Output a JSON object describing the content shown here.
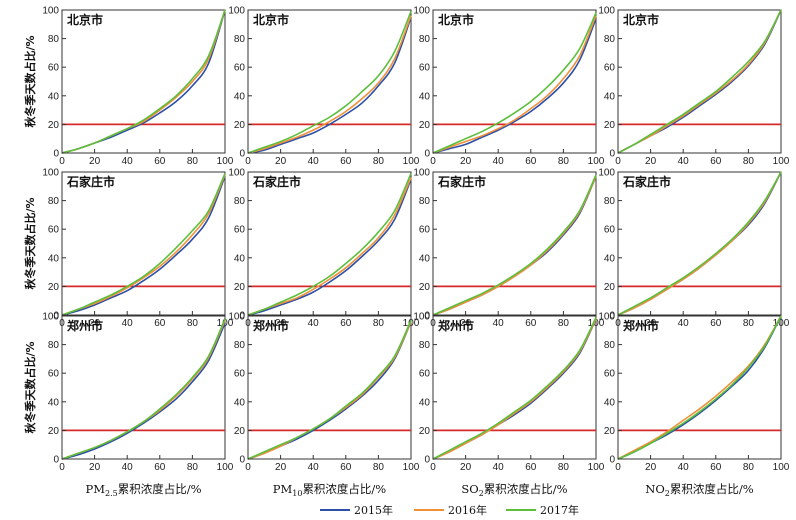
{
  "colors": {
    "2015": "#2c4fa8",
    "2016": "#f0903a",
    "2017": "#5cbf3c",
    "threshold": "#d62a2a",
    "axis": "#333333"
  },
  "legend": [
    {
      "name": "2015年",
      "color": "#2c4fa8"
    },
    {
      "name": "2016年",
      "color": "#f0903a"
    },
    {
      "name": "2017年",
      "color": "#5cbf3c"
    }
  ],
  "ylabel": "秋冬季天数占比/%",
  "columns": [
    {
      "pollutant": "PM2.5",
      "xlabel_pre": "PM",
      "xlabel_sub": "2.5",
      "xlabel_post": "累积浓度占比/%"
    },
    {
      "pollutant": "PM10",
      "xlabel_pre": "PM",
      "xlabel_sub": "10",
      "xlabel_post": "累积浓度占比/%"
    },
    {
      "pollutant": "SO2",
      "xlabel_pre": "SO",
      "xlabel_sub": "2",
      "xlabel_post": "累积浓度占比/%"
    },
    {
      "pollutant": "NO2",
      "xlabel_pre": "NO",
      "xlabel_sub": "2",
      "xlabel_post": "累积浓度占比/%"
    }
  ],
  "rows": [
    {
      "city": "北京市"
    },
    {
      "city": "石家庄市"
    },
    {
      "city": "郑州市"
    }
  ],
  "chart_data": {
    "type": "line",
    "threshold_y": 20,
    "xlim": [
      0,
      100
    ],
    "ylim": [
      0,
      100
    ],
    "xticks": [
      0,
      20,
      40,
      60,
      80,
      100
    ],
    "yticks": [
      0,
      20,
      40,
      60,
      80,
      100
    ],
    "x": [
      0,
      10,
      20,
      30,
      40,
      50,
      60,
      70,
      80,
      90,
      100
    ],
    "panels": [
      {
        "city": "北京市",
        "pollutant": "PM2.5",
        "series": [
          {
            "name": "2015年",
            "values": [
              0,
              3,
              7,
              11,
              16,
              21,
              28,
              36,
              47,
              63,
              100
            ]
          },
          {
            "name": "2016年",
            "values": [
              0,
              3,
              7,
              12,
              17,
              22,
              30,
              39,
              50,
              66,
              100
            ]
          },
          {
            "name": "2017年",
            "values": [
              0,
              3,
              7,
              12,
              17,
              23,
              31,
              40,
              52,
              68,
              100
            ]
          }
        ]
      },
      {
        "city": "北京市",
        "pollutant": "PM10",
        "series": [
          {
            "name": "2015年",
            "values": [
              0,
              2,
              6,
              10,
              14,
              20,
              27,
              35,
              47,
              63,
              95
            ]
          },
          {
            "name": "2016年",
            "values": [
              0,
              3,
              7,
              11,
              16,
              22,
              29,
              38,
              49,
              66,
              96
            ]
          },
          {
            "name": "2017年",
            "values": [
              0,
              4,
              8,
              13,
              19,
              25,
              33,
              43,
              54,
              71,
              99
            ]
          }
        ]
      },
      {
        "city": "北京市",
        "pollutant": "SO2",
        "series": [
          {
            "name": "2015年",
            "values": [
              0,
              3,
              6,
              11,
              16,
              22,
              29,
              38,
              49,
              65,
              94
            ]
          },
          {
            "name": "2016年",
            "values": [
              0,
              4,
              8,
              12,
              17,
              23,
              31,
              40,
              52,
              68,
              96
            ]
          },
          {
            "name": "2017年",
            "values": [
              0,
              5,
              10,
              15,
              21,
              28,
              36,
              46,
              58,
              73,
              98
            ]
          }
        ]
      },
      {
        "city": "北京市",
        "pollutant": "NO2",
        "series": [
          {
            "name": "2015年",
            "values": [
              0,
              6,
              12,
              18,
              25,
              33,
              41,
              50,
              61,
              76,
              100
            ]
          },
          {
            "name": "2016年",
            "values": [
              0,
              6,
              12,
              19,
              26,
              34,
              42,
              51,
              62,
              77,
              100
            ]
          },
          {
            "name": "2017年",
            "values": [
              0,
              6,
              13,
              20,
              27,
              35,
              43,
              53,
              64,
              78,
              100
            ]
          }
        ]
      },
      {
        "city": "石家庄市",
        "pollutant": "PM2.5",
        "series": [
          {
            "name": "2015年",
            "values": [
              0,
              3,
              7,
              12,
              17,
              24,
              32,
              42,
              53,
              68,
              97
            ]
          },
          {
            "name": "2016年",
            "values": [
              0,
              4,
              8,
              13,
              19,
              26,
              34,
              44,
              56,
              71,
              98
            ]
          },
          {
            "name": "2017年",
            "values": [
              0,
              4,
              9,
              14,
              20,
              27,
              36,
              47,
              59,
              73,
              99
            ]
          }
        ]
      },
      {
        "city": "石家庄市",
        "pollutant": "PM10",
        "series": [
          {
            "name": "2015年",
            "values": [
              0,
              3,
              7,
              11,
              16,
              23,
              31,
              41,
              52,
              67,
              95
            ]
          },
          {
            "name": "2016年",
            "values": [
              0,
              4,
              8,
              12,
              18,
              25,
              33,
              43,
              54,
              70,
              96
            ]
          },
          {
            "name": "2017年",
            "values": [
              0,
              4,
              9,
              14,
              20,
              27,
              36,
              46,
              58,
              73,
              99
            ]
          }
        ]
      },
      {
        "city": "石家庄市",
        "pollutant": "SO2",
        "series": [
          {
            "name": "2015年",
            "values": [
              0,
              4,
              9,
              14,
              20,
              27,
              35,
              44,
              56,
              71,
              97
            ]
          },
          {
            "name": "2016年",
            "values": [
              0,
              4,
              9,
              14,
              20,
              27,
              35,
              45,
              57,
              72,
              97
            ]
          },
          {
            "name": "2017年",
            "values": [
              0,
              5,
              10,
              15,
              21,
              28,
              36,
              46,
              58,
              73,
              98
            ]
          }
        ]
      },
      {
        "city": "石家庄市",
        "pollutant": "NO2",
        "series": [
          {
            "name": "2015年",
            "values": [
              0,
              5,
              11,
              18,
              25,
              33,
              42,
              52,
              63,
              78,
              100
            ]
          },
          {
            "name": "2016年",
            "values": [
              0,
              5,
              11,
              18,
              25,
              33,
              42,
              52,
              64,
              79,
              100
            ]
          },
          {
            "name": "2017年",
            "values": [
              0,
              6,
              12,
              19,
              26,
              34,
              43,
              53,
              65,
              80,
              100
            ]
          }
        ]
      },
      {
        "city": "郑州市",
        "pollutant": "PM2.5",
        "series": [
          {
            "name": "2015年",
            "values": [
              0,
              3,
              7,
              12,
              18,
              25,
              33,
              42,
              54,
              69,
              95
            ]
          },
          {
            "name": "2016年",
            "values": [
              0,
              4,
              8,
              13,
              19,
              26,
              34,
              44,
              56,
              71,
              97
            ]
          },
          {
            "name": "2017年",
            "values": [
              0,
              4,
              8,
              13,
              19,
              26,
              35,
              45,
              57,
              72,
              98
            ]
          }
        ]
      },
      {
        "city": "郑州市",
        "pollutant": "PM10",
        "series": [
          {
            "name": "2015年",
            "values": [
              0,
              4,
              9,
              14,
              20,
              27,
              35,
              44,
              55,
              70,
              96
            ]
          },
          {
            "name": "2016年",
            "values": [
              0,
              4,
              9,
              15,
              21,
              28,
              36,
              45,
              57,
              71,
              96
            ]
          },
          {
            "name": "2017年",
            "values": [
              0,
              5,
              10,
              15,
              21,
              28,
              37,
              46,
              58,
              72,
              97
            ]
          }
        ]
      },
      {
        "city": "郑州市",
        "pollutant": "SO2",
        "series": [
          {
            "name": "2015年",
            "values": [
              0,
              5,
              11,
              17,
              24,
              31,
              39,
              49,
              60,
              74,
              98
            ]
          },
          {
            "name": "2016年",
            "values": [
              0,
              5,
              11,
              17,
              24,
              32,
              40,
              50,
              61,
              75,
              98
            ]
          },
          {
            "name": "2017年",
            "values": [
              0,
              6,
              12,
              18,
              25,
              33,
              41,
              51,
              62,
              76,
              99
            ]
          }
        ]
      },
      {
        "city": "郑州市",
        "pollutant": "NO2",
        "series": [
          {
            "name": "2015年",
            "values": [
              0,
              5,
              11,
              17,
              24,
              32,
              41,
              51,
              62,
              78,
              100
            ]
          },
          {
            "name": "2016年",
            "values": [
              0,
              6,
              12,
              19,
              27,
              35,
              44,
              54,
              65,
              80,
              100
            ]
          },
          {
            "name": "2017年",
            "values": [
              0,
              5,
              11,
              18,
              25,
              33,
              42,
              52,
              64,
              79,
              100
            ]
          }
        ]
      }
    ]
  }
}
